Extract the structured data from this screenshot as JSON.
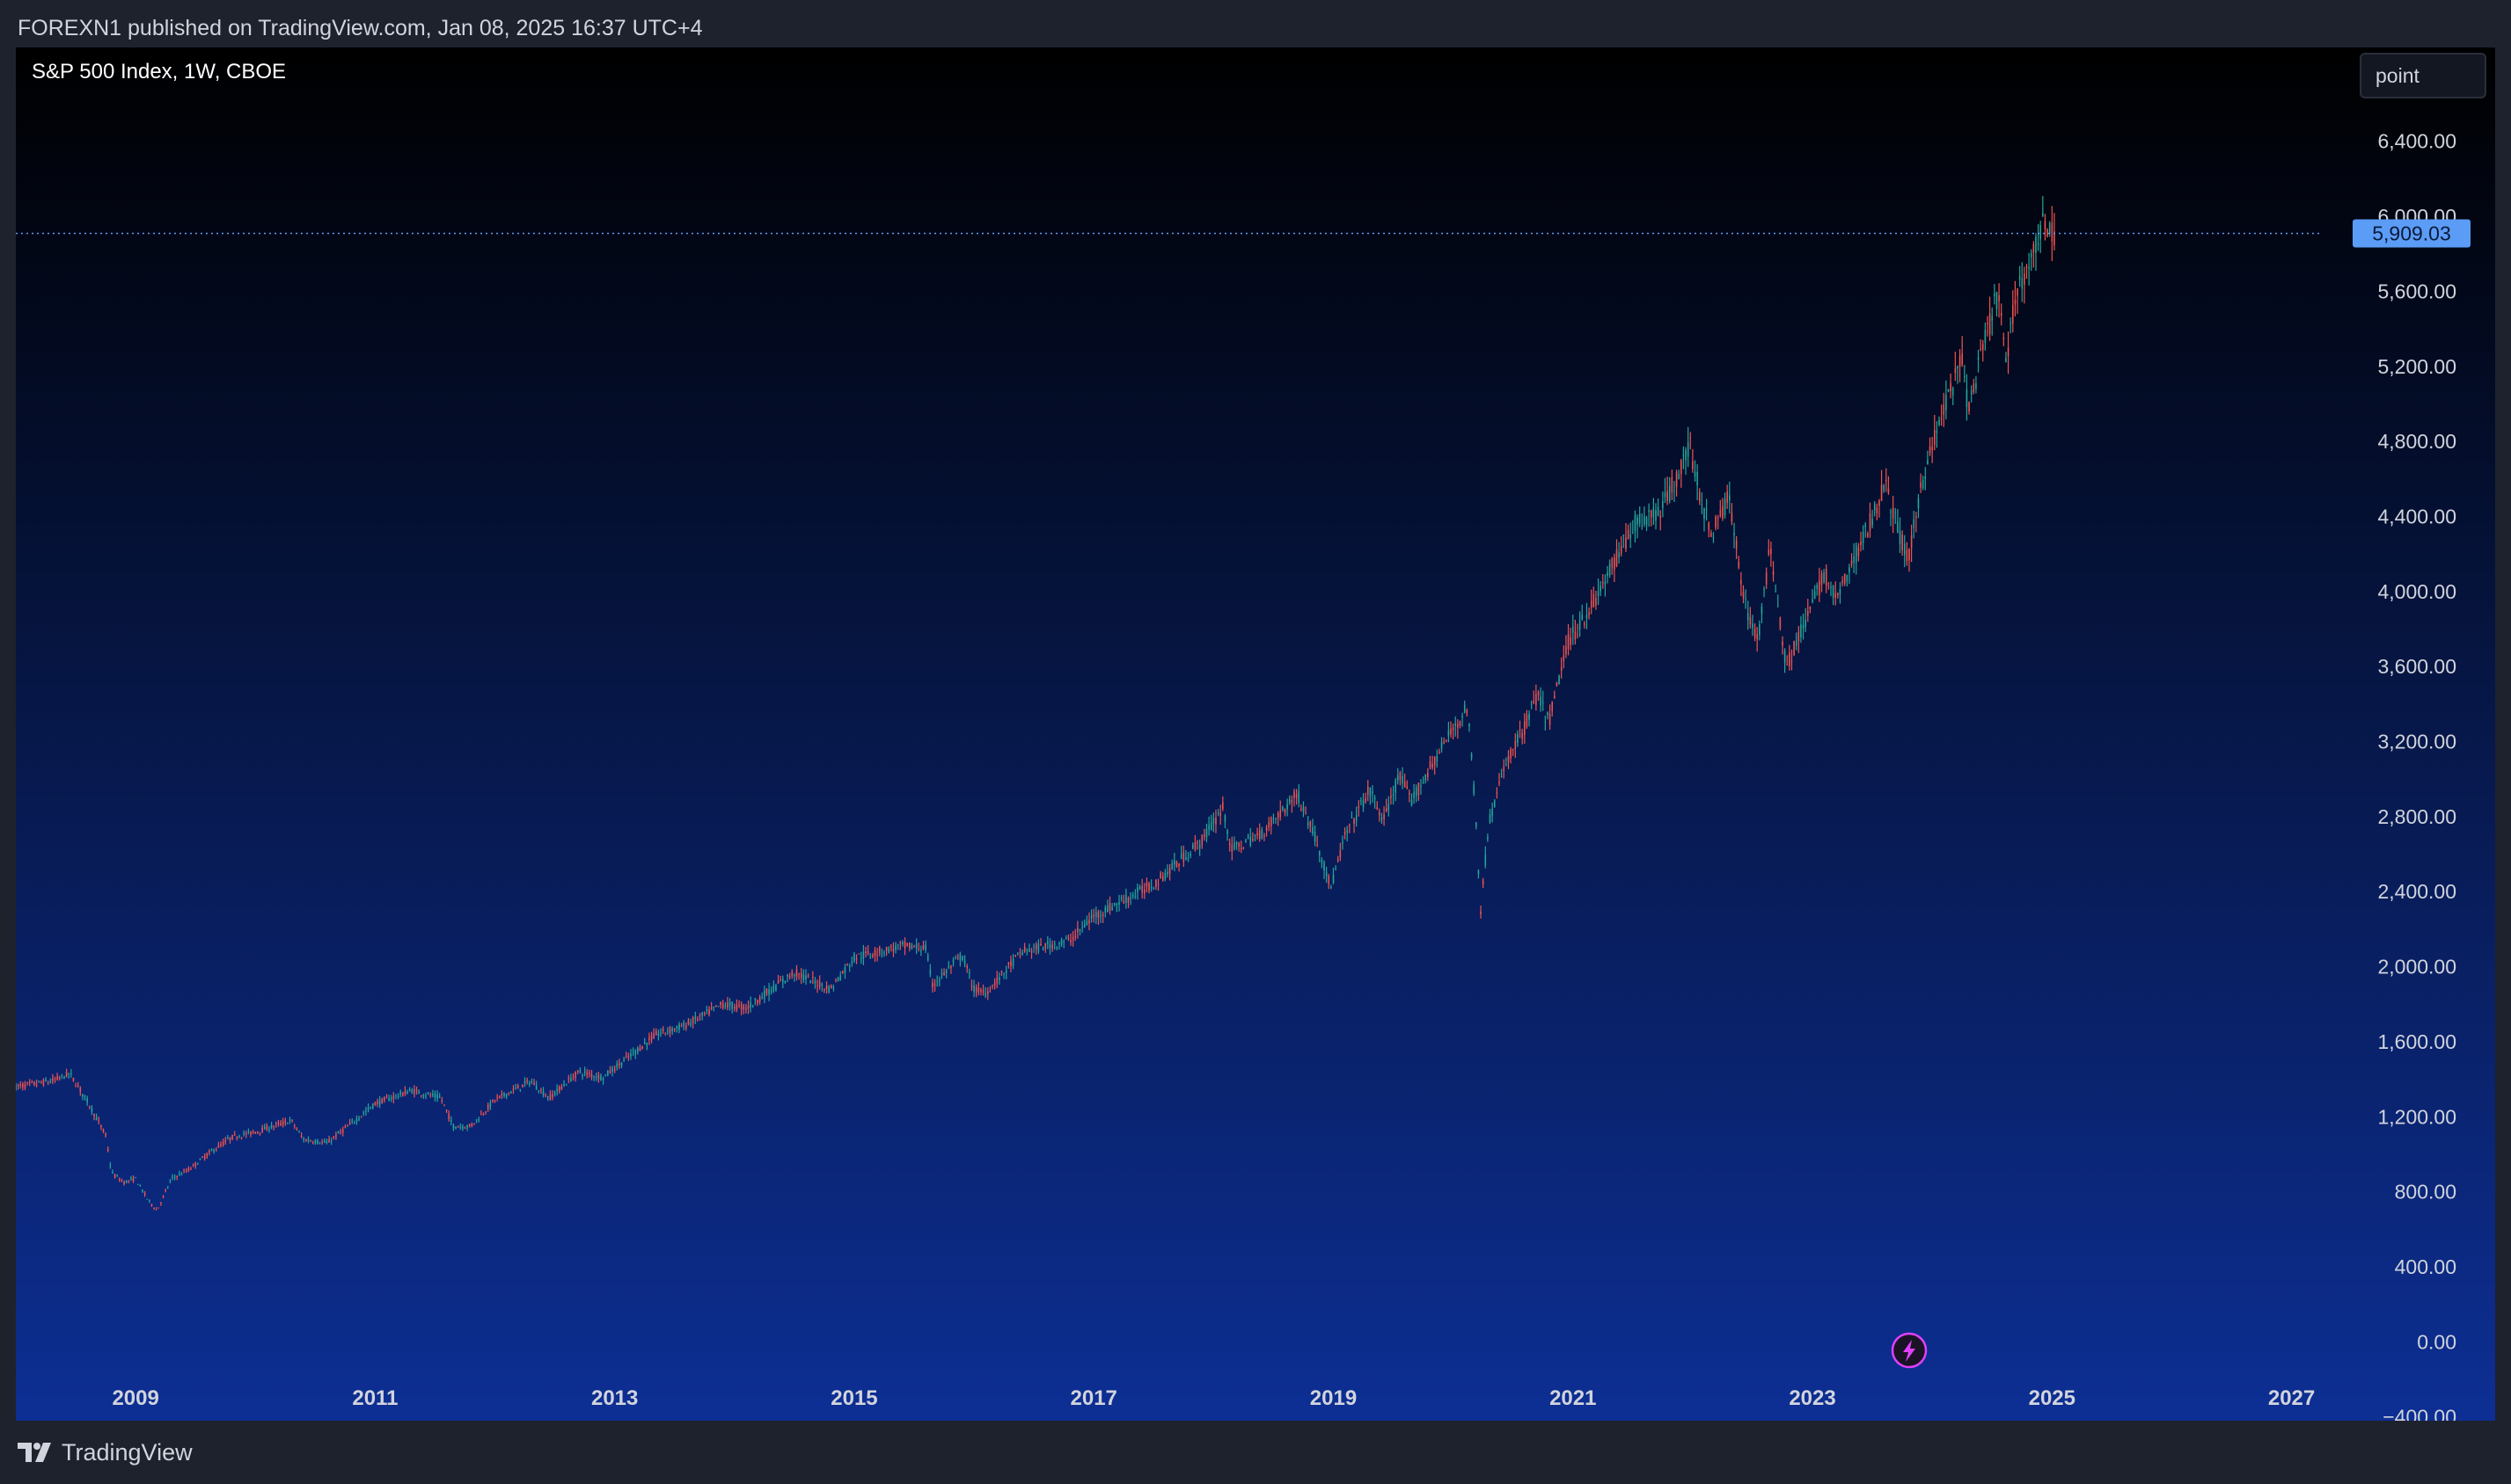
{
  "header": {
    "publication_line": "FOREXN1 published on TradingView.com, Jan 08, 2025 16:37 UTC+4"
  },
  "chart_header": {
    "symbol_title": "S&P 500 Index, 1W, CBOE"
  },
  "scale_mode_button": {
    "label": "point"
  },
  "footer": {
    "brand": "TradingView",
    "logo_icon": "tradingview-logo-icon"
  },
  "colors": {
    "background_top": "#000000",
    "background_bottom": "#0d2f94",
    "up_candle": "#26a69a",
    "down_candle": "#ef5350",
    "last_price_label": "#2962ff",
    "last_price_label_fill": "#5b9cf6",
    "text": "#d1d4dc",
    "live_badge": "#e040fb"
  },
  "live_badge_icon": "lightning-icon",
  "chart_data": {
    "type": "candlestick",
    "title": "S&P 500 Index, 1W, CBOE",
    "interval": "1W",
    "exchange": "CBOE",
    "last_price": 5909.03,
    "last_price_label": "5,909.03",
    "y_ticks": [
      -400,
      0,
      400,
      800,
      1200,
      1600,
      2000,
      2400,
      2800,
      3200,
      3600,
      4000,
      4400,
      4800,
      5200,
      5600,
      6000,
      6400
    ],
    "y_tick_labels": [
      "−400.00",
      "0.00",
      "400.00",
      "800.00",
      "1,200.00",
      "1,600.00",
      "2,000.00",
      "2,400.00",
      "2,800.00",
      "3,200.00",
      "3,600.00",
      "4,000.00",
      "4,400.00",
      "4,800.00",
      "5,200.00",
      "5,600.00",
      "6,000.00",
      "6,400.00"
    ],
    "x_ticks": [
      2009,
      2011,
      2013,
      2015,
      2017,
      2019,
      2021,
      2023,
      2025,
      2027
    ],
    "x_tick_labels": [
      "2009",
      "2011",
      "2013",
      "2015",
      "2017",
      "2019",
      "2021",
      "2023",
      "2025",
      "2027"
    ],
    "xlim": [
      2008.0,
      2028.7
    ],
    "ylim": [
      -420,
      6900
    ],
    "grid": false,
    "price_anchors": [
      [
        2008.0,
        1360
      ],
      [
        2008.3,
        1390
      ],
      [
        2008.45,
        1430
      ],
      [
        2008.6,
        1280
      ],
      [
        2008.75,
        1100
      ],
      [
        2008.8,
        900
      ],
      [
        2008.9,
        850
      ],
      [
        2009.0,
        870
      ],
      [
        2009.1,
        760
      ],
      [
        2009.18,
        700
      ],
      [
        2009.3,
        870
      ],
      [
        2009.45,
        920
      ],
      [
        2009.6,
        1000
      ],
      [
        2009.8,
        1090
      ],
      [
        2010.0,
        1120
      ],
      [
        2010.3,
        1180
      ],
      [
        2010.4,
        1080
      ],
      [
        2010.6,
        1060
      ],
      [
        2010.85,
        1190
      ],
      [
        2011.0,
        1270
      ],
      [
        2011.3,
        1340
      ],
      [
        2011.55,
        1300
      ],
      [
        2011.65,
        1150
      ],
      [
        2011.8,
        1150
      ],
      [
        2012.0,
        1290
      ],
      [
        2012.3,
        1390
      ],
      [
        2012.45,
        1300
      ],
      [
        2012.7,
        1440
      ],
      [
        2012.9,
        1410
      ],
      [
        2013.0,
        1460
      ],
      [
        2013.35,
        1640
      ],
      [
        2013.6,
        1690
      ],
      [
        2013.9,
        1800
      ],
      [
        2014.1,
        1780
      ],
      [
        2014.5,
        1970
      ],
      [
        2014.8,
        1880
      ],
      [
        2015.0,
        2050
      ],
      [
        2015.4,
        2110
      ],
      [
        2015.6,
        2100
      ],
      [
        2015.65,
        1900
      ],
      [
        2015.9,
        2060
      ],
      [
        2016.0,
        1880
      ],
      [
        2016.1,
        1860
      ],
      [
        2016.4,
        2080
      ],
      [
        2016.8,
        2140
      ],
      [
        2017.0,
        2270
      ],
      [
        2017.5,
        2440
      ],
      [
        2017.9,
        2670
      ],
      [
        2018.08,
        2850
      ],
      [
        2018.15,
        2620
      ],
      [
        2018.4,
        2710
      ],
      [
        2018.7,
        2920
      ],
      [
        2018.85,
        2690
      ],
      [
        2018.98,
        2420
      ],
      [
        2019.1,
        2700
      ],
      [
        2019.3,
        2940
      ],
      [
        2019.42,
        2780
      ],
      [
        2019.55,
        3020
      ],
      [
        2019.65,
        2880
      ],
      [
        2019.8,
        3050
      ],
      [
        2020.0,
        3270
      ],
      [
        2020.12,
        3380
      ],
      [
        2020.18,
        2900
      ],
      [
        2020.23,
        2300
      ],
      [
        2020.3,
        2780
      ],
      [
        2020.45,
        3100
      ],
      [
        2020.6,
        3280
      ],
      [
        2020.7,
        3450
      ],
      [
        2020.8,
        3300
      ],
      [
        2020.95,
        3720
      ],
      [
        2021.2,
        3970
      ],
      [
        2021.5,
        4350
      ],
      [
        2021.75,
        4450
      ],
      [
        2021.98,
        4770
      ],
      [
        2022.05,
        4550
      ],
      [
        2022.15,
        4300
      ],
      [
        2022.3,
        4500
      ],
      [
        2022.45,
        3900
      ],
      [
        2022.55,
        3750
      ],
      [
        2022.65,
        4250
      ],
      [
        2022.78,
        3600
      ],
      [
        2022.95,
        3850
      ],
      [
        2023.1,
        4100
      ],
      [
        2023.2,
        3950
      ],
      [
        2023.5,
        4400
      ],
      [
        2023.6,
        4580
      ],
      [
        2023.8,
        4150
      ],
      [
        2023.9,
        4550
      ],
      [
        2024.0,
        4780
      ],
      [
        2024.25,
        5250
      ],
      [
        2024.3,
        4970
      ],
      [
        2024.5,
        5480
      ],
      [
        2024.55,
        5600
      ],
      [
        2024.62,
        5200
      ],
      [
        2024.7,
        5610
      ],
      [
        2024.85,
        5800
      ],
      [
        2024.93,
        5990
      ],
      [
        2025.0,
        5900
      ],
      [
        2025.03,
        5909.03
      ]
    ]
  }
}
